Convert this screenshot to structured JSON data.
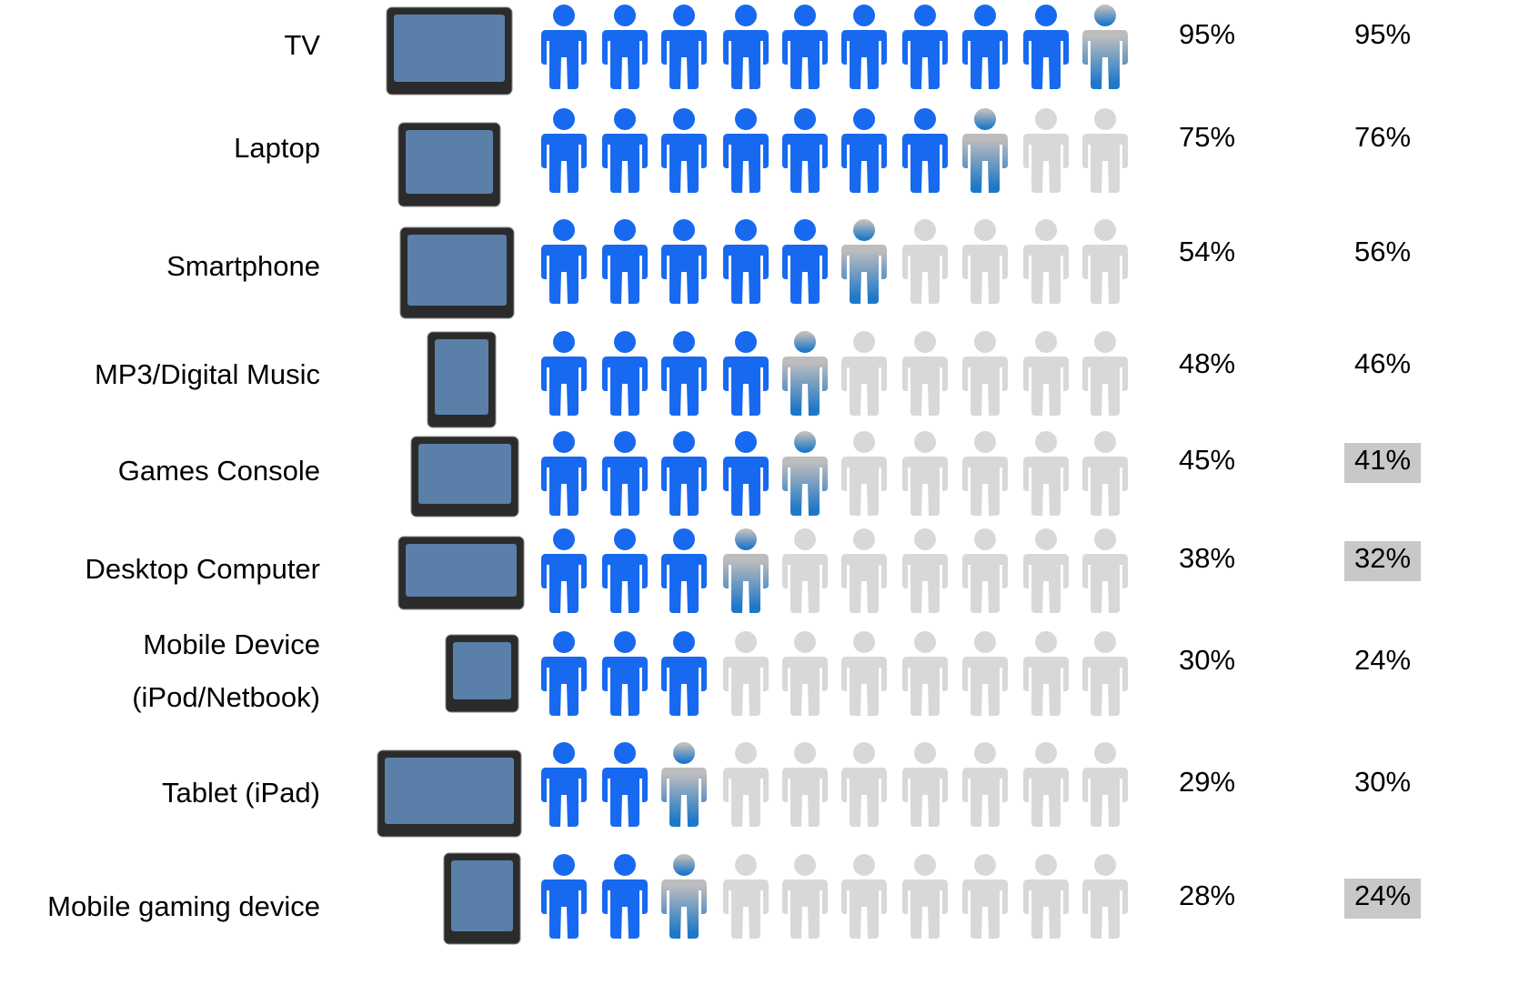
{
  "chart_data": {
    "type": "pictogram",
    "categories": [
      "TV",
      "Laptop",
      "Smartphone",
      "MP3/Digital Music",
      "Games Console",
      "Desktop Computer",
      "Mobile Device\n(iPod/Netbook)",
      "Tablet (iPad)",
      "Mobile gaming device"
    ],
    "icon_count": 10,
    "icon_color": "#1769f0",
    "empty_color": "#d8d8d8",
    "partial_colors": [
      "#bdbdbd",
      "#1e78c8"
    ],
    "series": [
      {
        "values": [
          95,
          75,
          54,
          48,
          45,
          38,
          30,
          29,
          28
        ],
        "value_labels": [
          "95%",
          "75%",
          "54%",
          "48%",
          "45%",
          "38%",
          "30%",
          "29%",
          "28%"
        ]
      },
      {
        "values": [
          95,
          76,
          56,
          46,
          41,
          32,
          24,
          30,
          24
        ],
        "value_labels": [
          "95%",
          "76%",
          "56%",
          "46%",
          "41%",
          "32%",
          "24%",
          "30%",
          "24%"
        ],
        "highlight": [
          false,
          false,
          false,
          false,
          true,
          true,
          false,
          false,
          true
        ],
        "highlight_color": "#c8c8c8"
      }
    ]
  }
}
